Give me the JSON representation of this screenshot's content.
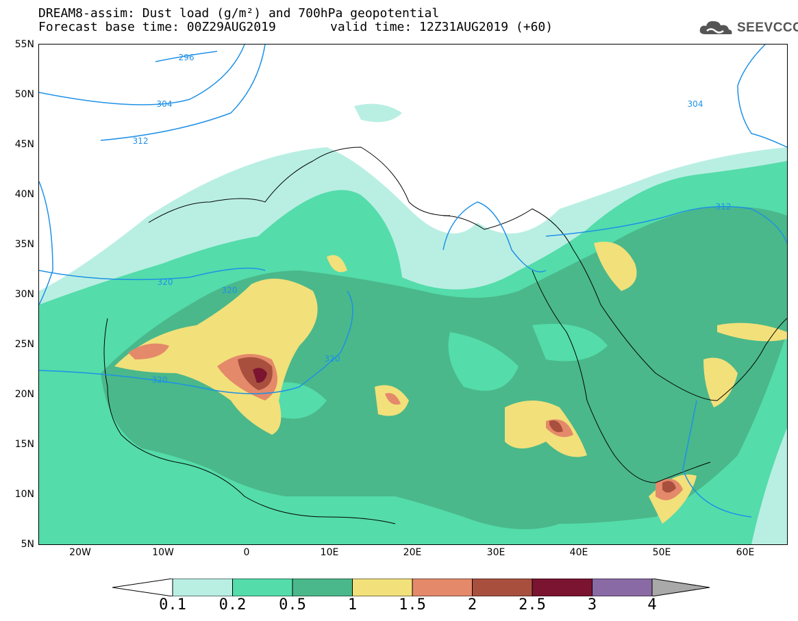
{
  "title": {
    "line1": "DREAM8-assim: Dust load (g/m²) and 700hPa geopotential",
    "line2": "Forecast base time: 00Z29AUG2019",
    "valid": "valid time: 12Z31AUG2019 (+60)"
  },
  "logo": {
    "text": "SEEVCCC",
    "icon": "cloud-icon"
  },
  "map": {
    "lat_range": [
      5,
      55
    ],
    "lon_range": [
      -25,
      65
    ],
    "lat_ticks": [
      "55N",
      "50N",
      "45N",
      "40N",
      "35N",
      "30N",
      "25N",
      "20N",
      "15N",
      "10N",
      "5N"
    ],
    "lon_ticks": [
      "20W",
      "10W",
      "0",
      "10E",
      "20E",
      "30E",
      "40E",
      "50E",
      "60E"
    ],
    "contour_labels": [
      "296",
      "304",
      "312",
      "304",
      "312",
      "320",
      "320",
      "320",
      "320"
    ],
    "grid": "dotted"
  },
  "colorbar": {
    "labels": [
      "0.1",
      "0.2",
      "0.5",
      "1",
      "1.5",
      "2",
      "2.5",
      "3",
      "4"
    ],
    "colors": [
      "#b9efe3",
      "#54dcaa",
      "#4ab88a",
      "#f2e07a",
      "#e4896a",
      "#a94f3e",
      "#7b1431",
      "#8a6aa5",
      "#a9a9a9"
    ]
  }
}
